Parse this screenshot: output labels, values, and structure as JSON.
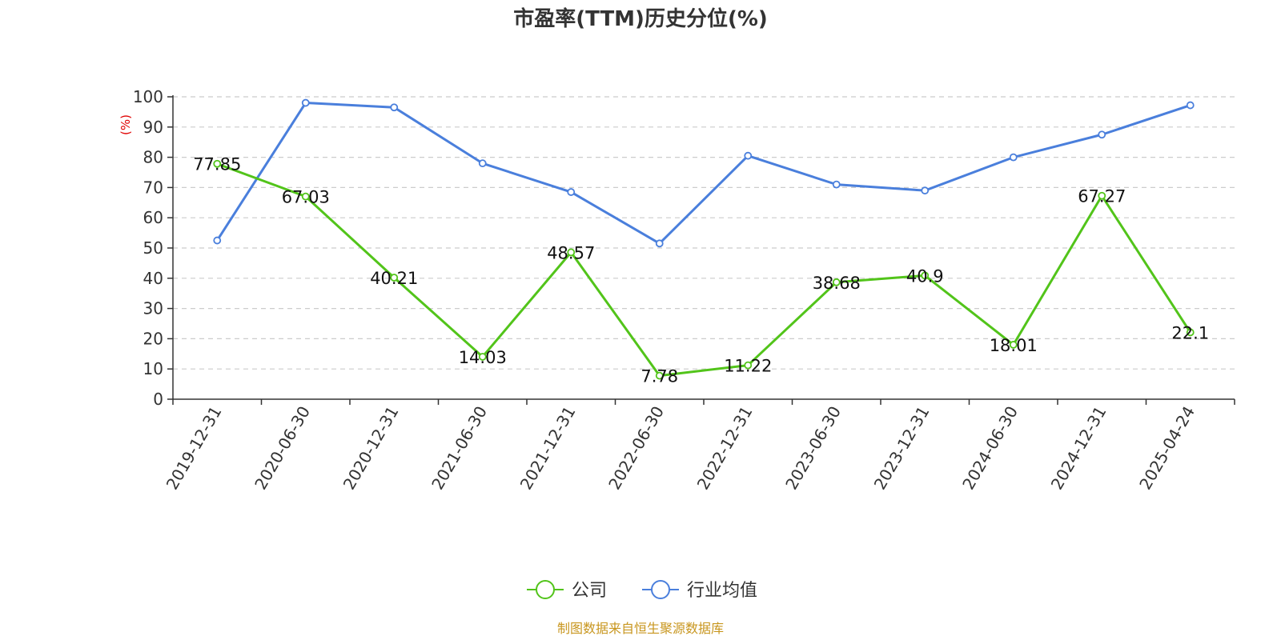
{
  "chart_data": {
    "type": "line",
    "title": "市盈率(TTM)历史分位(%)",
    "ylabel": "(%)",
    "ylim": [
      0,
      100
    ],
    "yticks": [
      0,
      10,
      20,
      30,
      40,
      50,
      60,
      70,
      80,
      90,
      100
    ],
    "grid": true,
    "legend_position": "bottom",
    "categories": [
      "2019-12-31",
      "2020-06-30",
      "2020-12-31",
      "2021-06-30",
      "2021-12-31",
      "2022-06-30",
      "2022-12-31",
      "2023-06-30",
      "2023-12-31",
      "2024-06-30",
      "2024-12-31",
      "2025-04-24"
    ],
    "series": [
      {
        "name": "公司",
        "color": "#52c41a",
        "show_labels": true,
        "values": [
          77.85,
          67.03,
          40.21,
          14.03,
          48.57,
          7.78,
          11.22,
          38.68,
          40.9,
          18.01,
          67.27,
          22.1
        ]
      },
      {
        "name": "行业均值",
        "color": "#4a7fdc",
        "show_labels": false,
        "values": [
          52.5,
          98,
          96.5,
          78,
          68.5,
          51.5,
          80.5,
          71,
          69,
          80,
          87.5,
          97.2
        ]
      }
    ]
  },
  "footer": {
    "source_text": "制图数据来自恒生聚源数据库",
    "source_color": "#c8961e"
  },
  "colors": {
    "unit_label": "#e00000",
    "axis": "#333333",
    "grid": "#cccccc"
  }
}
